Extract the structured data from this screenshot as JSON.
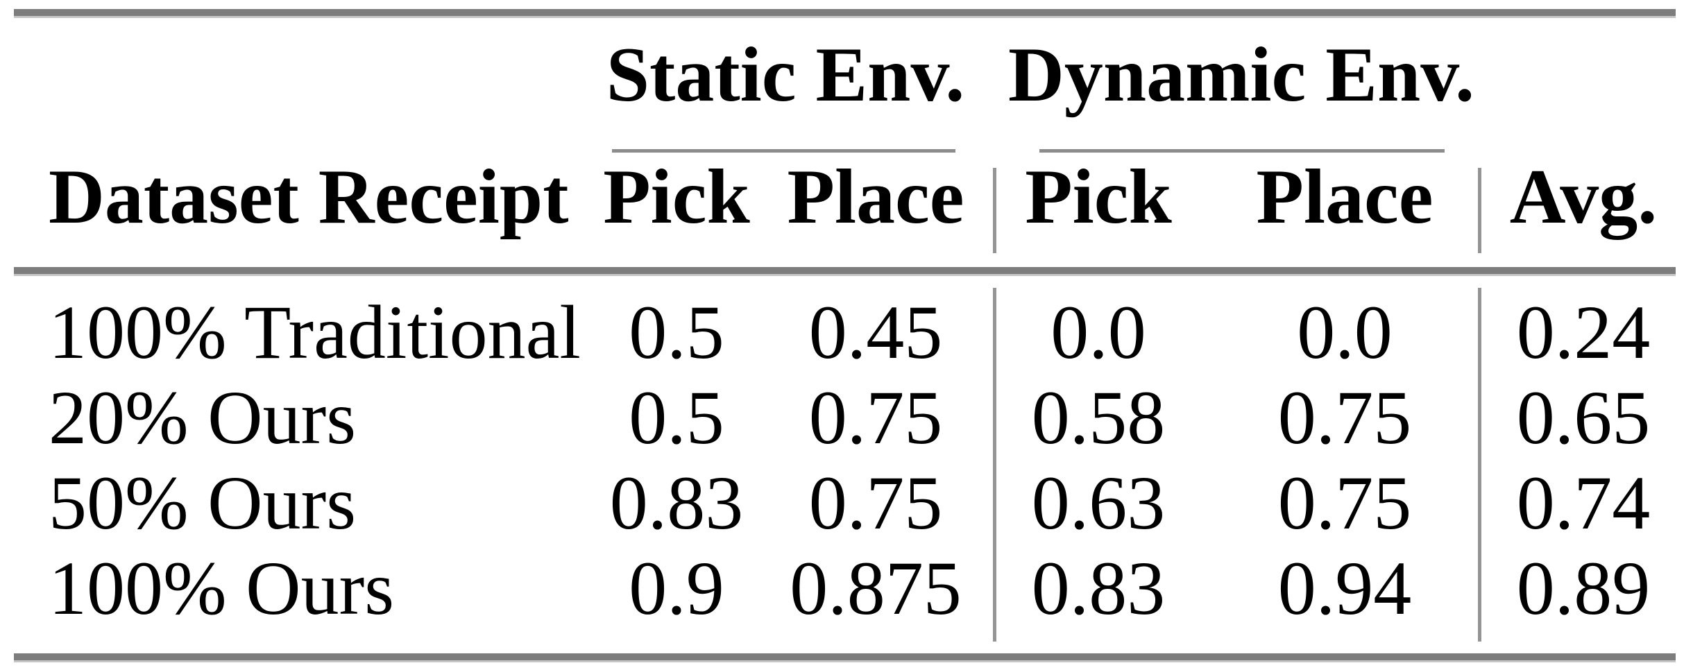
{
  "table": {
    "groups": {
      "static": {
        "label": "Static Env."
      },
      "dynamic": {
        "label": "Dynamic Env."
      }
    },
    "headers": {
      "row_label": "Dataset Receipt",
      "static_pick": "Pick",
      "static_place": "Place",
      "dynamic_pick": "Pick",
      "dynamic_place": "Place",
      "avg": "Avg."
    },
    "rows": [
      {
        "label": "100% Traditional",
        "static_pick": "0.5",
        "static_place": "0.45",
        "dynamic_pick": "0.0",
        "dynamic_place": "0.0",
        "avg": "0.24"
      },
      {
        "label": "20% Ours",
        "static_pick": "0.5",
        "static_place": "0.75",
        "dynamic_pick": "0.58",
        "dynamic_place": "0.75",
        "avg": "0.65"
      },
      {
        "label": "50% Ours",
        "static_pick": "0.83",
        "static_place": "0.75",
        "dynamic_pick": "0.63",
        "dynamic_place": "0.75",
        "avg": "0.74"
      },
      {
        "label": "100% Ours",
        "static_pick": "0.9",
        "static_place": "0.875",
        "dynamic_pick": "0.83",
        "dynamic_place": "0.94",
        "avg": "0.89"
      }
    ],
    "colors": {
      "heavy_rule": "#7d7d7d",
      "rule_fringe": "#c6c6c6",
      "light_rule": "#8c8c8c",
      "vertical_separator": "#949494",
      "text": "#000000",
      "background": "#ffffff"
    }
  },
  "chart_data": {
    "type": "table",
    "title": "",
    "columns": [
      "Dataset Receipt",
      "Static Env. Pick",
      "Static Env. Place",
      "Dynamic Env. Pick",
      "Dynamic Env. Place",
      "Avg."
    ],
    "rows": [
      [
        "100% Traditional",
        0.5,
        0.45,
        0.0,
        0.0,
        0.24
      ],
      [
        "20% Ours",
        0.5,
        0.75,
        0.58,
        0.75,
        0.65
      ],
      [
        "50% Ours",
        0.83,
        0.75,
        0.63,
        0.75,
        0.74
      ],
      [
        "100% Ours",
        0.9,
        0.875,
        0.83,
        0.94,
        0.89
      ]
    ]
  }
}
